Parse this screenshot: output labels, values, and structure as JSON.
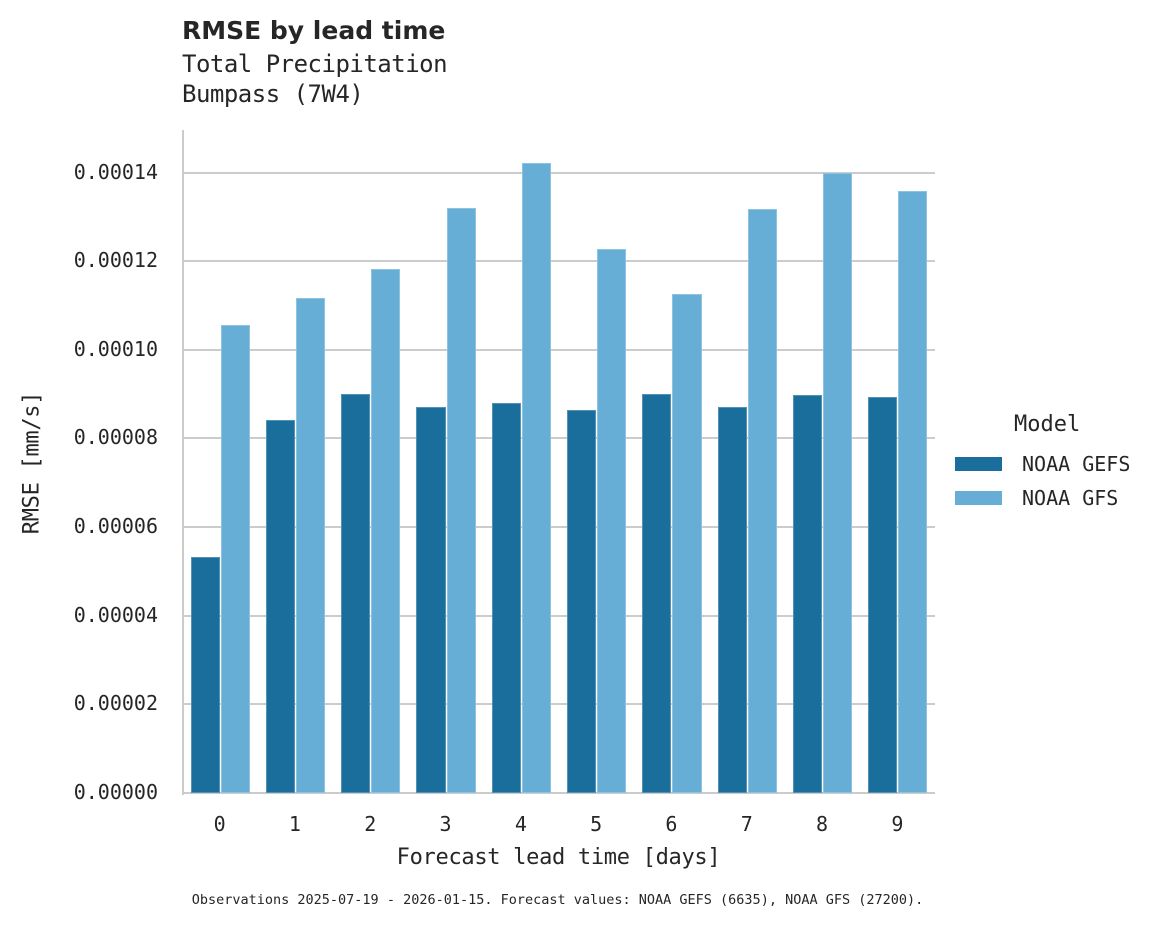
{
  "title": "RMSE by lead time",
  "subtitle_line1": "Total Precipitation",
  "subtitle_line2": "Bumpass (7W4)",
  "xaxis_title": "Forecast lead time [days]",
  "yaxis_title": "RMSE [mm/s]",
  "footnote": "Observations 2025-07-19 - 2026-01-15. Forecast values: NOAA GEFS (6635), NOAA GFS (27200).",
  "legend": {
    "title": "Model",
    "items": [
      {
        "label": "NOAA GEFS",
        "color": "#1a6e9c"
      },
      {
        "label": "NOAA GFS",
        "color": "#67aed6"
      }
    ]
  },
  "yticks": [
    "0.00000",
    "0.00002",
    "0.00004",
    "0.00006",
    "0.00008",
    "0.00010",
    "0.00012",
    "0.00014"
  ],
  "xticks": [
    "0",
    "1",
    "2",
    "3",
    "4",
    "5",
    "6",
    "7",
    "8",
    "9"
  ],
  "chart_data": {
    "type": "bar",
    "title": "RMSE by lead time",
    "subtitle": "Total Precipitation / Bumpass (7W4)",
    "xlabel": "Forecast lead time [days]",
    "ylabel": "RMSE [mm/s]",
    "categories": [
      "0",
      "1",
      "2",
      "3",
      "4",
      "5",
      "6",
      "7",
      "8",
      "9"
    ],
    "series": [
      {
        "name": "NOAA GEFS",
        "color": "#1a6e9c",
        "values": [
          5.33e-05,
          8.41e-05,
          9e-05,
          8.71e-05,
          8.81e-05,
          8.64e-05,
          9e-05,
          8.71e-05,
          8.98e-05,
          8.94e-05
        ]
      },
      {
        "name": "NOAA GFS",
        "color": "#67aed6",
        "values": [
          0.0001056,
          0.0001116,
          0.0001182,
          0.000132,
          0.0001422,
          0.0001227,
          0.0001126,
          0.0001318,
          0.0001399,
          0.0001359
        ]
      }
    ],
    "ylim": [
      0,
      0.00015
    ],
    "yticks": [
      0,
      2e-05,
      4e-05,
      6e-05,
      8e-05,
      0.0001,
      0.00012,
      0.00014
    ],
    "grid": "horizontal",
    "legend_position": "right",
    "legend_title": "Model"
  }
}
